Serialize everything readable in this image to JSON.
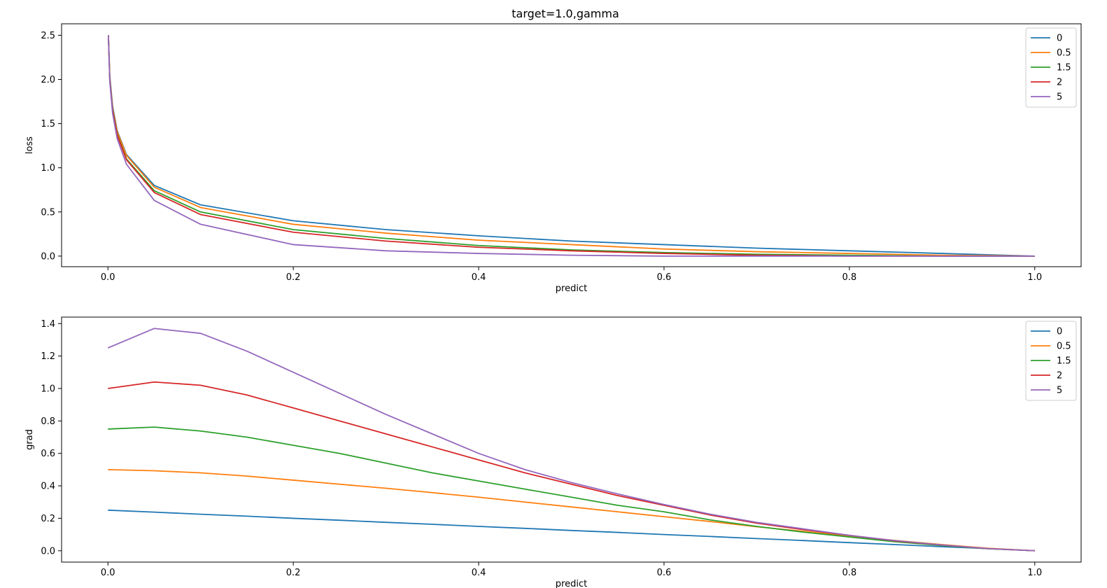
{
  "figure": {
    "title": "target=1.0,gamma"
  },
  "chart_data": [
    {
      "type": "line",
      "title": "target=1.0,gamma",
      "xlabel": "predict",
      "ylabel": "loss",
      "xlim": [
        -0.05,
        1.05
      ],
      "ylim": [
        -0.12,
        2.63
      ],
      "xticks": [
        "0.0",
        "0.2",
        "0.4",
        "0.6",
        "0.8",
        "1.0"
      ],
      "yticks": [
        "0.0",
        "0.5",
        "1.0",
        "1.5",
        "2.0",
        "2.5"
      ],
      "grid": false,
      "legend": "top-right",
      "x": [
        0.0005,
        0.002,
        0.005,
        0.01,
        0.02,
        0.05,
        0.1,
        0.2,
        0.3,
        0.4,
        0.5,
        0.6,
        0.7,
        0.8,
        0.9,
        1.0
      ],
      "series": [
        {
          "name": "0",
          "color": "#1f77b4",
          "values": [
            2.5,
            2.04,
            1.7,
            1.42,
            1.15,
            0.8,
            0.58,
            0.4,
            0.3,
            0.23,
            0.17,
            0.13,
            0.09,
            0.06,
            0.03,
            0.0
          ]
        },
        {
          "name": "0.5",
          "color": "#ff7f0e",
          "values": [
            2.5,
            2.02,
            1.68,
            1.41,
            1.14,
            0.78,
            0.55,
            0.36,
            0.26,
            0.18,
            0.13,
            0.08,
            0.05,
            0.03,
            0.01,
            0.0
          ]
        },
        {
          "name": "1.5",
          "color": "#2ca02c",
          "values": [
            2.5,
            2.01,
            1.66,
            1.38,
            1.1,
            0.74,
            0.5,
            0.3,
            0.2,
            0.12,
            0.07,
            0.04,
            0.02,
            0.01,
            0.0,
            0.0
          ]
        },
        {
          "name": "2",
          "color": "#d62728",
          "values": [
            2.5,
            2.0,
            1.65,
            1.37,
            1.09,
            0.72,
            0.47,
            0.27,
            0.17,
            0.1,
            0.06,
            0.03,
            0.01,
            0.0,
            0.0,
            0.0
          ]
        },
        {
          "name": "5",
          "color": "#9467bd",
          "values": [
            2.5,
            1.98,
            1.62,
            1.33,
            1.04,
            0.63,
            0.36,
            0.13,
            0.06,
            0.03,
            0.01,
            0.0,
            0.0,
            0.0,
            0.0,
            0.0
          ]
        }
      ]
    },
    {
      "type": "line",
      "title": "",
      "xlabel": "predict",
      "ylabel": "grad",
      "xlim": [
        -0.05,
        1.05
      ],
      "ylim": [
        -0.07,
        1.44
      ],
      "xticks": [
        "0.0",
        "0.2",
        "0.4",
        "0.6",
        "0.8",
        "1.0"
      ],
      "yticks": [
        "0.0",
        "0.2",
        "0.4",
        "0.6",
        "0.8",
        "1.0",
        "1.2",
        "1.4"
      ],
      "grid": false,
      "legend": "top-right",
      "x": [
        0.0,
        0.05,
        0.1,
        0.15,
        0.2,
        0.25,
        0.3,
        0.35,
        0.4,
        0.45,
        0.5,
        0.55,
        0.6,
        0.65,
        0.7,
        0.75,
        0.8,
        0.85,
        0.9,
        0.95,
        1.0
      ],
      "series": [
        {
          "name": "0",
          "color": "#1f77b4",
          "values": [
            0.25,
            0.238,
            0.225,
            0.213,
            0.2,
            0.188,
            0.175,
            0.163,
            0.15,
            0.138,
            0.125,
            0.113,
            0.1,
            0.088,
            0.075,
            0.063,
            0.05,
            0.038,
            0.025,
            0.013,
            0.0
          ]
        },
        {
          "name": "0.5",
          "color": "#ff7f0e",
          "values": [
            0.5,
            0.493,
            0.48,
            0.46,
            0.435,
            0.41,
            0.385,
            0.358,
            0.33,
            0.3,
            0.27,
            0.24,
            0.21,
            0.18,
            0.148,
            0.12,
            0.09,
            0.063,
            0.038,
            0.015,
            0.0
          ]
        },
        {
          "name": "1.5",
          "color": "#2ca02c",
          "values": [
            0.75,
            0.762,
            0.738,
            0.7,
            0.65,
            0.6,
            0.54,
            0.48,
            0.43,
            0.38,
            0.33,
            0.28,
            0.24,
            0.19,
            0.15,
            0.115,
            0.085,
            0.055,
            0.032,
            0.012,
            0.0
          ]
        },
        {
          "name": "2",
          "color": "#d62728",
          "values": [
            1.0,
            1.04,
            1.02,
            0.96,
            0.88,
            0.8,
            0.72,
            0.64,
            0.56,
            0.48,
            0.41,
            0.34,
            0.28,
            0.22,
            0.17,
            0.13,
            0.095,
            0.06,
            0.035,
            0.013,
            0.0
          ]
        },
        {
          "name": "5",
          "color": "#9467bd",
          "values": [
            1.25,
            1.37,
            1.34,
            1.23,
            1.1,
            0.97,
            0.84,
            0.72,
            0.6,
            0.5,
            0.42,
            0.35,
            0.285,
            0.225,
            0.175,
            0.135,
            0.095,
            0.062,
            0.035,
            0.013,
            0.0
          ]
        }
      ]
    }
  ]
}
